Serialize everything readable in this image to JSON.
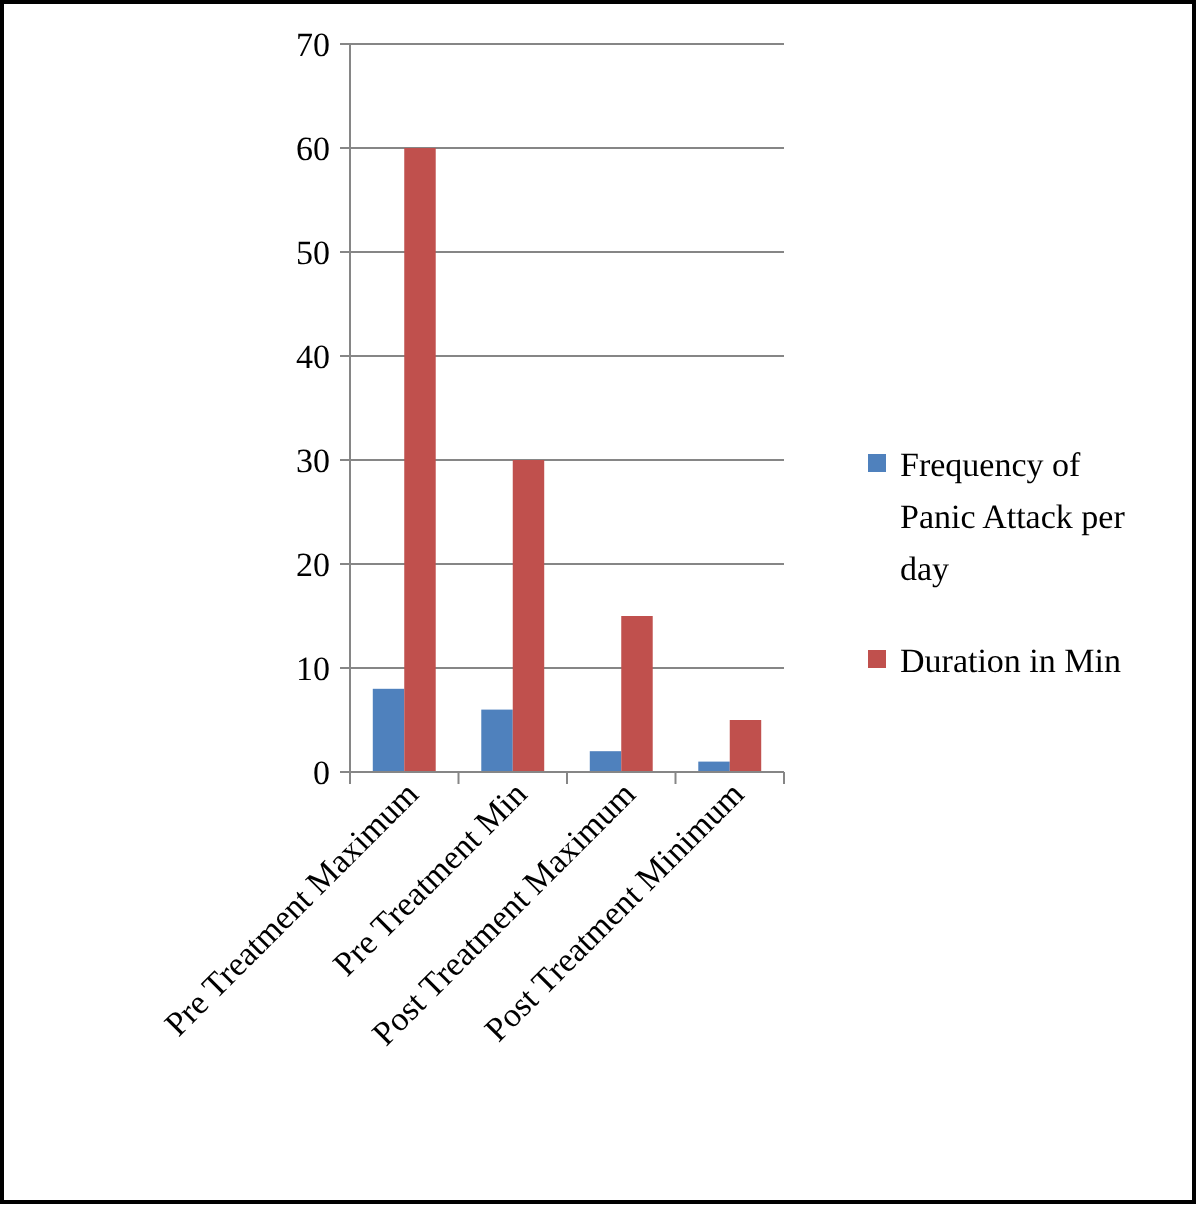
{
  "chart_data": {
    "type": "bar",
    "categories": [
      "Pre Treatment Maximum",
      "Pre Treatment Min",
      "Post Treatment Maximum",
      "Post Treatment Minimum"
    ],
    "series": [
      {
        "name": "Frequency of Panic Attack per day",
        "color": "#4f81bd",
        "values": [
          8,
          6,
          2,
          1
        ]
      },
      {
        "name": "Duration in Min",
        "color": "#c0504d",
        "values": [
          60,
          30,
          15,
          5
        ]
      }
    ],
    "ylim": [
      0,
      70
    ],
    "yticks": [
      0,
      10,
      20,
      30,
      40,
      50,
      60,
      70
    ],
    "grid": "y",
    "legend": "right"
  }
}
